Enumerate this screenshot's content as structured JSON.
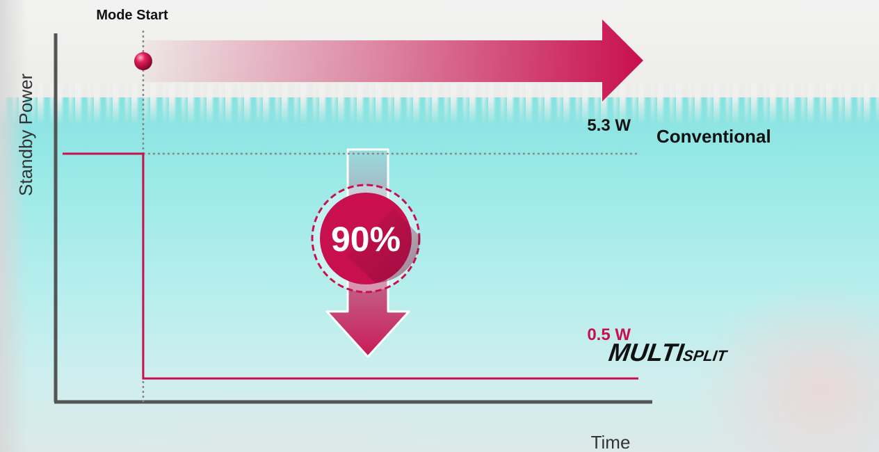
{
  "chart_data": {
    "type": "line",
    "xlabel": "Time",
    "ylabel": "Standby Power",
    "xlim": [
      0,
      10
    ],
    "ylim": [
      0,
      6.8
    ],
    "annotations": {
      "mode_start_label": "Mode Start",
      "mode_start_x": 1.4,
      "conventional_value_label": "5.3 W",
      "conventional_series_label": "Conventional",
      "multisplit_value_label": "0.5 W",
      "reduction_label": "90%"
    },
    "series": [
      {
        "name": "Conventional",
        "style": "dotted",
        "color": "#888888",
        "points": [
          [
            1.4,
            5.3
          ],
          [
            10,
            5.3
          ]
        ]
      },
      {
        "style": "solid",
        "color": "#c8104e",
        "points": [
          [
            0,
            5.3
          ],
          [
            1.4,
            5.3
          ],
          [
            1.4,
            0.5
          ],
          [
            10,
            0.5
          ]
        ]
      }
    ]
  },
  "brand": {
    "main": "MULTI",
    "sub": "SPLIT"
  },
  "colors": {
    "accent": "#c8104e",
    "axis": "#555555",
    "guide": "#888888",
    "background": "#9ceae8"
  }
}
